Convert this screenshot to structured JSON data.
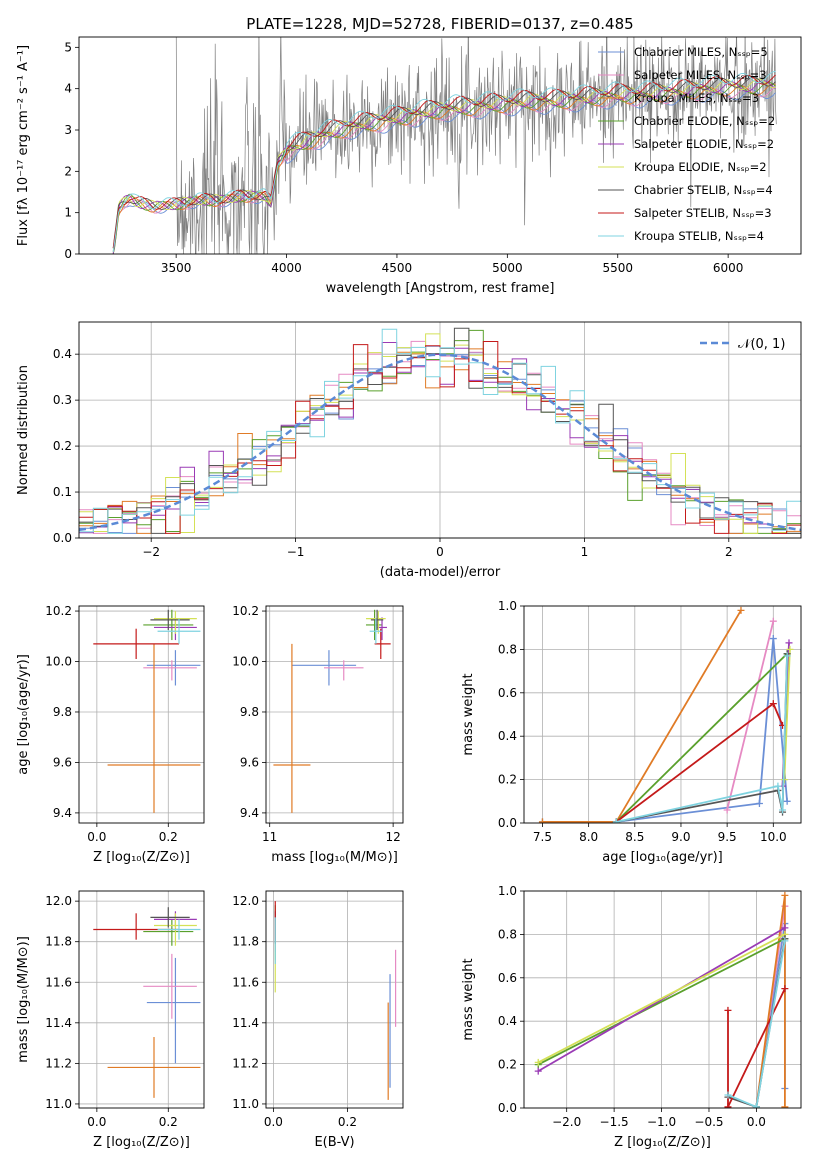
{
  "chart_data": [
    {
      "id": "spectrum",
      "type": "line",
      "title": "PLATE=1228, MJD=52728, FIBERID=0137, z=0.485",
      "xlabel": "wavelength [Angstrom, rest frame]",
      "ylabel": "Flux [fλ 10⁻¹⁷ erg cm⁻² s⁻¹ A⁻¹]",
      "xlim": [
        3060,
        6330
      ],
      "ylim": [
        0,
        5.25
      ],
      "xticks": [
        3500,
        4000,
        4500,
        5000,
        5500,
        6000
      ],
      "yticks": [
        0,
        1,
        2,
        3,
        4,
        5
      ],
      "data_color": "#808080",
      "data_x_range": [
        3500,
        6220
      ],
      "model_x_range": [
        3215,
        6220
      ],
      "model_continuum": {
        "x": [
          3215,
          3240,
          3260,
          3290,
          3320,
          3400,
          3500,
          3600,
          3700,
          3800,
          3900,
          3930,
          3960,
          4000,
          4100,
          4200,
          4300,
          4400,
          4500,
          4600,
          4700,
          4800,
          4900,
          5000,
          5100,
          5200,
          5300,
          5400,
          5500,
          5600,
          5700,
          5800,
          5900,
          6000,
          6100,
          6220
        ],
        "y": [
          0.0,
          1.1,
          1.25,
          1.35,
          1.25,
          1.15,
          1.2,
          1.3,
          1.3,
          1.4,
          1.4,
          1.25,
          2.2,
          2.5,
          2.75,
          2.95,
          3.1,
          3.2,
          3.3,
          3.4,
          3.5,
          3.55,
          3.6,
          3.65,
          3.7,
          3.7,
          3.75,
          3.8,
          3.85,
          3.85,
          3.9,
          3.95,
          4.0,
          4.05,
          4.05,
          4.1
        ]
      },
      "legend": [
        "Chabrier MILES, Nₛₛₚ=5",
        "Salpeter MILES, Nₛₛₚ=3",
        "Kroupa MILES, Nₛₛₚ=3",
        "Chabrier ELODIE, Nₛₛₚ=2",
        "Salpeter ELODIE, Nₛₛₚ=2",
        "Kroupa ELODIE, Nₛₛₚ=2",
        "Chabrier STELIB, Nₛₛₚ=4",
        "Salpeter STELIB, Nₛₛₚ=3",
        "Kroupa STELIB, Nₛₛₚ=4"
      ],
      "legend_position": "right"
    },
    {
      "id": "residuals",
      "type": "step",
      "xlabel": "(data-model)/error",
      "ylabel": "Normed distribution",
      "xlim": [
        -2.5,
        2.5
      ],
      "ylim": [
        0,
        0.47
      ],
      "xticks": [
        -2,
        -1,
        0,
        1,
        2
      ],
      "yticks": [
        0.0,
        0.1,
        0.2,
        0.3,
        0.4
      ],
      "grid": true,
      "bin_width": 0.1,
      "legend": [
        "𝒩(0, 1)"
      ],
      "legend_position": "top-right"
    },
    {
      "id": "age-vs-Z",
      "type": "errorbar",
      "xlabel": "Z [log₁₀(Z/Z⊙)]",
      "ylabel": "age  [log₁₀(age/yr)]",
      "xlim": [
        -0.05,
        0.3
      ],
      "ylim": [
        9.36,
        10.22
      ],
      "xticks": [
        0.0,
        0.2
      ],
      "yticks": [
        9.4,
        9.6,
        9.8,
        10.0,
        10.2
      ],
      "grid": true,
      "points": [
        {
          "x": 0.22,
          "xerr": [
            0.08,
            0.07
          ],
          "y": 9.985,
          "yerr": [
            0.08,
            0.06
          ],
          "c": 0
        },
        {
          "x": 0.21,
          "xerr": [
            0.08,
            0.07
          ],
          "y": 9.975,
          "yerr": [
            0.05,
            0.03
          ],
          "c": 1
        },
        {
          "x": 0.16,
          "xerr": [
            0.13,
            0.13
          ],
          "y": 9.59,
          "yerr": [
            0.19,
            0.48
          ],
          "c": 2
        },
        {
          "x": 0.21,
          "xerr": [
            0.08,
            0.06
          ],
          "y": 10.145,
          "yerr": [
            0.06,
            0.06
          ],
          "c": 3
        },
        {
          "x": 0.22,
          "xerr": [
            0.06,
            0.06
          ],
          "y": 10.135,
          "yerr": [
            0.05,
            0.04
          ],
          "c": 4
        },
        {
          "x": 0.22,
          "xerr": [
            0.06,
            0.06
          ],
          "y": 10.17,
          "yerr": [
            0.06,
            0.03
          ],
          "c": 5
        },
        {
          "x": 0.2,
          "xerr": [
            0.05,
            0.06
          ],
          "y": 10.165,
          "yerr": [
            0.04,
            0.04
          ],
          "c": 6
        },
        {
          "x": 0.11,
          "xerr": [
            0.12,
            0.12
          ],
          "y": 10.07,
          "yerr": [
            0.06,
            0.06
          ],
          "c": 7
        },
        {
          "x": 0.23,
          "xerr": [
            0.06,
            0.06
          ],
          "y": 10.12,
          "yerr": [
            0.05,
            0.05
          ],
          "c": 8
        }
      ]
    },
    {
      "id": "age-vs-mass",
      "type": "errorbar",
      "xlabel": "mass [log₁₀(M/M⊙)]",
      "ylabel": "",
      "xlim": [
        10.97,
        12.08
      ],
      "ylim": [
        9.36,
        10.22
      ],
      "xticks": [
        11,
        12
      ],
      "yticks": [
        9.4,
        9.6,
        9.8,
        10.0,
        10.2
      ],
      "grid": true,
      "points": [
        {
          "x": 11.48,
          "xerr": [
            0.3,
            0.22
          ],
          "y": 9.985,
          "yerr": [
            0.08,
            0.06
          ],
          "c": 0
        },
        {
          "x": 11.6,
          "xerr": [
            0.16,
            0.16
          ],
          "y": 9.975,
          "yerr": [
            0.05,
            0.03
          ],
          "c": 1
        },
        {
          "x": 11.18,
          "xerr": [
            0.15,
            0.15
          ],
          "y": 9.59,
          "yerr": [
            0.19,
            0.48
          ],
          "c": 2
        },
        {
          "x": 11.85,
          "xerr": [
            0.07,
            0.06
          ],
          "y": 10.145,
          "yerr": [
            0.06,
            0.06
          ],
          "c": 3
        },
        {
          "x": 11.91,
          "xerr": [
            0.04,
            0.04
          ],
          "y": 10.135,
          "yerr": [
            0.05,
            0.04
          ],
          "c": 4
        },
        {
          "x": 11.88,
          "xerr": [
            0.1,
            0.06
          ],
          "y": 10.17,
          "yerr": [
            0.06,
            0.03
          ],
          "c": 5
        },
        {
          "x": 11.87,
          "xerr": [
            0.05,
            0.05
          ],
          "y": 10.165,
          "yerr": [
            0.04,
            0.04
          ],
          "c": 6
        },
        {
          "x": 11.9,
          "xerr": [
            0.05,
            0.08
          ],
          "y": 10.07,
          "yerr": [
            0.06,
            0.06
          ],
          "c": 7
        },
        {
          "x": 11.86,
          "xerr": [
            0.05,
            0.05
          ],
          "y": 10.12,
          "yerr": [
            0.05,
            0.05
          ],
          "c": 8
        }
      ]
    },
    {
      "id": "weight-vs-age",
      "type": "line",
      "xlabel": "age  [log₁₀(age/yr)]",
      "ylabel": "mass weight",
      "xlim": [
        7.3,
        10.3
      ],
      "ylim": [
        0,
        1.0
      ],
      "xticks": [
        7.5,
        8.0,
        8.5,
        9.0,
        9.5,
        10.0
      ],
      "yticks": [
        0.0,
        0.2,
        0.4,
        0.6,
        0.8,
        1.0
      ],
      "grid": true,
      "series": [
        {
          "c": 0,
          "x": [
            7.5,
            8.3,
            9.85,
            10.0,
            10.15
          ],
          "y": [
            0.005,
            0.005,
            0.09,
            0.85,
            0.1
          ]
        },
        {
          "c": 1,
          "x": [
            9.5,
            10.0
          ],
          "y": [
            0.06,
            0.93
          ]
        },
        {
          "c": 2,
          "x": [
            7.5,
            8.3,
            9.65
          ],
          "y": [
            0.005,
            0.005,
            0.98
          ]
        },
        {
          "c": 3,
          "x": [
            8.3,
            10.15
          ],
          "y": [
            0.005,
            0.78
          ]
        },
        {
          "c": 4,
          "x": [
            10.1,
            10.17
          ],
          "y": [
            0.17,
            0.83
          ]
        },
        {
          "c": 5,
          "x": [
            10.12,
            10.18
          ],
          "y": [
            0.2,
            0.8
          ]
        },
        {
          "c": 6,
          "x": [
            8.3,
            10.05,
            10.1,
            10.15
          ],
          "y": [
            0.005,
            0.15,
            0.05,
            0.78
          ]
        },
        {
          "c": 7,
          "x": [
            8.3,
            10.0,
            10.1
          ],
          "y": [
            0.005,
            0.55,
            0.45
          ]
        },
        {
          "c": 8,
          "x": [
            8.3,
            10.05,
            10.1,
            10.15
          ],
          "y": [
            0.005,
            0.17,
            0.06,
            0.77
          ]
        }
      ]
    },
    {
      "id": "mass-vs-Z",
      "type": "errorbar",
      "xlabel": "Z [log₁₀(Z/Z⊙)]",
      "ylabel": "mass [log₁₀(M/M⊙)]",
      "xlim": [
        -0.05,
        0.3
      ],
      "ylim": [
        10.98,
        12.05
      ],
      "xticks": [
        0.0,
        0.2
      ],
      "yticks": [
        11.0,
        11.2,
        11.4,
        11.6,
        11.8,
        12.0
      ],
      "grid": true,
      "points": [
        {
          "x": 0.22,
          "xerr": [
            0.08,
            0.07
          ],
          "y": 11.5,
          "yerr": [
            0.3,
            0.22
          ],
          "c": 0
        },
        {
          "x": 0.21,
          "xerr": [
            0.08,
            0.07
          ],
          "y": 11.58,
          "yerr": [
            0.16,
            0.16
          ],
          "c": 1
        },
        {
          "x": 0.16,
          "xerr": [
            0.13,
            0.13
          ],
          "y": 11.18,
          "yerr": [
            0.15,
            0.15
          ],
          "c": 2
        },
        {
          "x": 0.21,
          "xerr": [
            0.08,
            0.06
          ],
          "y": 11.85,
          "yerr": [
            0.07,
            0.06
          ],
          "c": 3
        },
        {
          "x": 0.22,
          "xerr": [
            0.06,
            0.06
          ],
          "y": 11.91,
          "yerr": [
            0.04,
            0.04
          ],
          "c": 4
        },
        {
          "x": 0.22,
          "xerr": [
            0.06,
            0.06
          ],
          "y": 11.88,
          "yerr": [
            0.1,
            0.06
          ],
          "c": 5
        },
        {
          "x": 0.2,
          "xerr": [
            0.05,
            0.06
          ],
          "y": 11.92,
          "yerr": [
            0.05,
            0.05
          ],
          "c": 6
        },
        {
          "x": 0.11,
          "xerr": [
            0.12,
            0.12
          ],
          "y": 11.86,
          "yerr": [
            0.05,
            0.08
          ],
          "c": 7
        },
        {
          "x": 0.23,
          "xerr": [
            0.06,
            0.06
          ],
          "y": 11.86,
          "yerr": [
            0.05,
            0.05
          ],
          "c": 8
        }
      ]
    },
    {
      "id": "mass-vs-ebv",
      "type": "errorbar",
      "xlabel": "E(B-V)",
      "ylabel": "",
      "xlim": [
        -0.02,
        0.35
      ],
      "ylim": [
        10.98,
        12.05
      ],
      "xticks": [
        0.0,
        0.2
      ],
      "yticks": [
        11.0,
        11.2,
        11.4,
        11.6,
        11.8,
        12.0
      ],
      "grid": true,
      "points": [
        {
          "x": 0.315,
          "xerr": [
            0,
            0
          ],
          "y": 11.42,
          "yerr": [
            0.34,
            0.22
          ],
          "c": 0
        },
        {
          "x": 0.33,
          "xerr": [
            0,
            0
          ],
          "y": 11.58,
          "yerr": [
            0.2,
            0.18
          ],
          "c": 1
        },
        {
          "x": 0.31,
          "xerr": [
            0,
            0
          ],
          "y": 11.3,
          "yerr": [
            0.28,
            0.2
          ],
          "c": 2
        },
        {
          "x": 0.005,
          "xerr": [
            0,
            0
          ],
          "y": 11.86,
          "yerr": [
            0.15,
            0.12
          ],
          "c": 3
        },
        {
          "x": 0.005,
          "xerr": [
            0,
            0
          ],
          "y": 11.85,
          "yerr": [
            0.1,
            0.1
          ],
          "c": 4
        },
        {
          "x": 0.005,
          "xerr": [
            0,
            0
          ],
          "y": 11.75,
          "yerr": [
            0.2,
            0.15
          ],
          "c": 5
        },
        {
          "x": 0.005,
          "xerr": [
            0,
            0
          ],
          "y": 11.87,
          "yerr": [
            0.08,
            0.08
          ],
          "c": 6
        },
        {
          "x": 0.005,
          "xerr": [
            0,
            0
          ],
          "y": 11.88,
          "yerr": [
            0.07,
            0.12
          ],
          "c": 7
        },
        {
          "x": 0.005,
          "xerr": [
            0,
            0
          ],
          "y": 11.84,
          "yerr": [
            0.15,
            0.08
          ],
          "c": 8
        }
      ]
    },
    {
      "id": "weight-vs-Z",
      "type": "line",
      "xlabel": "Z [log₁₀(Z/Z⊙)]",
      "ylabel": "mass weight",
      "xlim": [
        -2.45,
        0.47
      ],
      "ylim": [
        0,
        1.0
      ],
      "xticks": [
        -2.0,
        -1.5,
        -1.0,
        -0.5,
        0.0
      ],
      "yticks": [
        0.0,
        0.2,
        0.4,
        0.6,
        0.8,
        1.0
      ],
      "grid": true,
      "series": [
        {
          "c": 0,
          "x": [
            0.0,
            0.3,
            0.3
          ],
          "y": [
            0.005,
            0.85,
            0.09
          ]
        },
        {
          "c": 1,
          "x": [
            0.0,
            0.3
          ],
          "y": [
            0.005,
            0.93
          ]
        },
        {
          "c": 2,
          "x": [
            0.0,
            0.3,
            0.3
          ],
          "y": [
            0.005,
            0.98,
            0.005
          ]
        },
        {
          "c": 3,
          "x": [
            -2.3,
            0.3
          ],
          "y": [
            0.2,
            0.78
          ]
        },
        {
          "c": 4,
          "x": [
            -2.3,
            0.3
          ],
          "y": [
            0.17,
            0.83
          ]
        },
        {
          "c": 5,
          "x": [
            -2.3,
            0.3
          ],
          "y": [
            0.21,
            0.8
          ]
        },
        {
          "c": 6,
          "x": [
            -0.3,
            0.0,
            0.3
          ],
          "y": [
            0.05,
            0.005,
            0.78
          ]
        },
        {
          "c": 7,
          "x": [
            -0.3,
            -0.3,
            0.3
          ],
          "y": [
            0.45,
            0.005,
            0.55
          ]
        },
        {
          "c": 8,
          "x": [
            -0.3,
            0.0,
            0.3
          ],
          "y": [
            0.06,
            0.005,
            0.77
          ]
        }
      ]
    }
  ],
  "series_colors": [
    "#6b8fd6",
    "#e68ac3",
    "#e07b26",
    "#5aa02c",
    "#9a3bb5",
    "#d4e157",
    "#555555",
    "#c41a1a",
    "#7fd3e0"
  ],
  "gauss_color": "#5b8ad6"
}
